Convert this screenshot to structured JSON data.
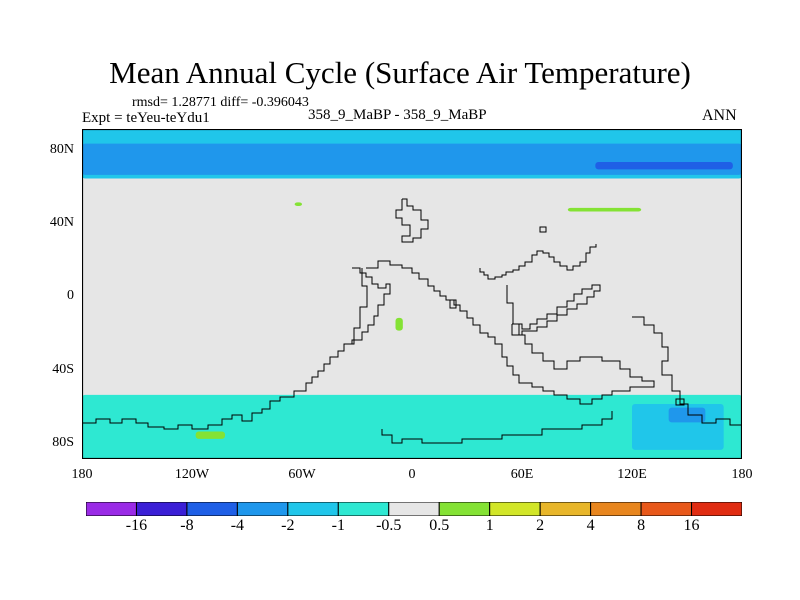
{
  "title": "Mean Annual Cycle (Surface Air Temperature)",
  "stats": "rmsd= 1.28771 diff= -0.396043",
  "expt": "Expt = teYeu-teYdu1",
  "cases": "358_9_MaBP - 358_9_MaBP",
  "season": "ANN",
  "map": {
    "lat_ticks": [
      "80N",
      "40N",
      "0",
      "40S",
      "80S"
    ],
    "lon_ticks": [
      "180",
      "120W",
      "60W",
      "0",
      "60E",
      "120E",
      "180"
    ],
    "lon_range": [
      -180,
      180
    ],
    "lat_range": [
      -90,
      90
    ],
    "background_color": "#e6e6e6",
    "anomaly_regions": [
      {
        "lat": [
          90,
          63
        ],
        "lon": [
          -180,
          180
        ],
        "bin": "-2 to -1"
      },
      {
        "lat": [
          82,
          65
        ],
        "lon": [
          -180,
          180
        ],
        "bin": "-4 to -2"
      },
      {
        "lat": [
          72,
          68
        ],
        "lon": [
          100,
          175
        ],
        "bin": "-8 to -4"
      },
      {
        "lat": [
          -55,
          -90
        ],
        "lon": [
          -180,
          180
        ],
        "bin": "-1 to -0.5"
      },
      {
        "lat": [
          -60,
          -85
        ],
        "lon": [
          120,
          170
        ],
        "bin": "-2 to -1"
      },
      {
        "lat": [
          -62,
          -70
        ],
        "lon": [
          140,
          160
        ],
        "bin": "-4 to -2"
      },
      {
        "lat": [
          50,
          48
        ],
        "lon": [
          -64,
          -60
        ],
        "bin": "0.5 to 1"
      },
      {
        "lat": [
          47,
          45
        ],
        "lon": [
          85,
          125
        ],
        "bin": "0.5 to 1"
      },
      {
        "lat": [
          -75,
          -79
        ],
        "lon": [
          -118,
          -102
        ],
        "bin": "0.5 to 1"
      },
      {
        "lat": [
          -13,
          -20
        ],
        "lon": [
          -9,
          -5
        ],
        "bin": "0.5 to 1"
      }
    ]
  },
  "colorbar": {
    "labels": [
      "-16",
      "-8",
      "-4",
      "-2",
      "-1",
      "-0.5",
      "0.5",
      "1",
      "2",
      "4",
      "8",
      "16"
    ],
    "colors": [
      "#9a2be6",
      "#3b1fd6",
      "#1f5fe6",
      "#1f97ec",
      "#20c6ea",
      "#2ee8d2",
      "#e6e6e6",
      "#84e234",
      "#d2e628",
      "#e8b62a",
      "#e8861e",
      "#e8581a",
      "#e02c12"
    ]
  }
}
